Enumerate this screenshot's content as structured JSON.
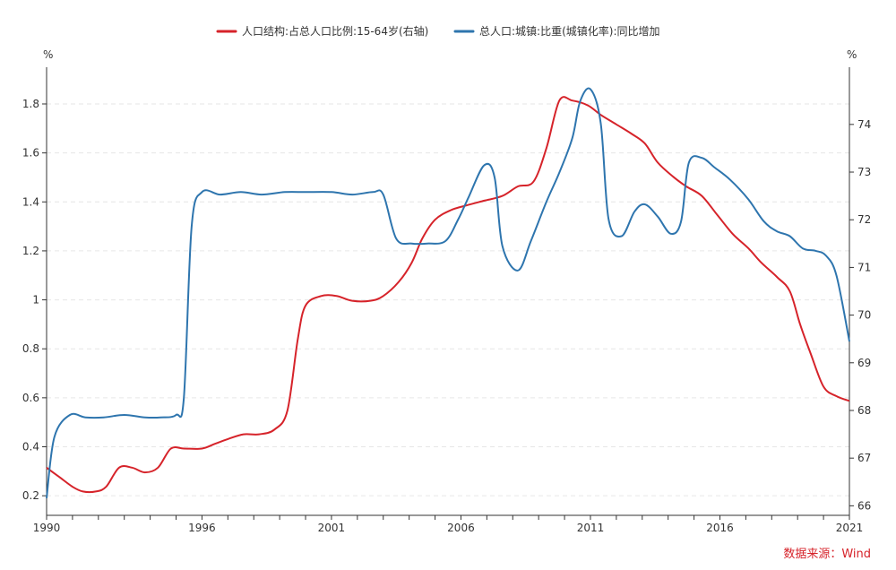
{
  "chart_data": {
    "type": "line",
    "legend": {
      "placement": "top-center"
    },
    "left_axis": {
      "unit": "%",
      "ylim": [
        0.12,
        1.95
      ],
      "ticks": [
        "0.2",
        "0.4",
        "0.6",
        "0.8",
        "1",
        "1.2",
        "1.4",
        "1.6",
        "1.8"
      ]
    },
    "right_axis": {
      "unit": "%",
      "ylim": [
        65.8,
        75.2
      ],
      "ticks": [
        "66",
        "67",
        "68",
        "69",
        "70",
        "71",
        "72",
        "73",
        "74"
      ]
    },
    "x_axis": {
      "xlim": [
        1990,
        2021
      ],
      "ticks": [
        "1990",
        "1996",
        "2001",
        "2006",
        "2011",
        "2016",
        "2021"
      ]
    },
    "grid": true,
    "series": [
      {
        "name": "人口结构:占总人口比例:15-64岁(右轴)",
        "color": "#d6232a",
        "axis": "right",
        "points": [
          [
            1990,
            66.8
          ],
          [
            1990.5,
            66.6
          ],
          [
            1991,
            66.4
          ],
          [
            1991.4,
            66.3
          ],
          [
            1991.9,
            66.3
          ],
          [
            1992.3,
            66.4
          ],
          [
            1992.8,
            66.8
          ],
          [
            1993.3,
            66.8
          ],
          [
            1993.8,
            66.7
          ],
          [
            1994.3,
            66.8
          ],
          [
            1994.8,
            67.2
          ],
          [
            1995.3,
            67.2
          ],
          [
            1996,
            67.2
          ],
          [
            1996.5,
            67.3
          ],
          [
            1997,
            67.4
          ],
          [
            1997.6,
            67.5
          ],
          [
            1998.2,
            67.5
          ],
          [
            1998.8,
            67.6
          ],
          [
            1999.3,
            68
          ],
          [
            1999.7,
            69.5
          ],
          [
            2000,
            70.2
          ],
          [
            2000.6,
            70.4
          ],
          [
            2001.2,
            70.4
          ],
          [
            2001.8,
            70.3
          ],
          [
            2002.5,
            70.3
          ],
          [
            2003,
            70.4
          ],
          [
            2003.6,
            70.7
          ],
          [
            2004.1,
            71.1
          ],
          [
            2004.5,
            71.6
          ],
          [
            2005,
            72
          ],
          [
            2005.6,
            72.2
          ],
          [
            2006.2,
            72.3
          ],
          [
            2006.9,
            72.4
          ],
          [
            2007.6,
            72.5
          ],
          [
            2008.2,
            72.7
          ],
          [
            2008.8,
            72.8
          ],
          [
            2009.3,
            73.5
          ],
          [
            2009.8,
            74.5
          ],
          [
            2010.3,
            74.5
          ],
          [
            2010.9,
            74.4
          ],
          [
            2011.4,
            74.2
          ],
          [
            2012,
            74
          ],
          [
            2012.6,
            73.8
          ],
          [
            2013.1,
            73.6
          ],
          [
            2013.6,
            73.2
          ],
          [
            2014.2,
            72.9
          ],
          [
            2014.7,
            72.7
          ],
          [
            2015.3,
            72.5
          ],
          [
            2015.9,
            72.1
          ],
          [
            2016.5,
            71.7
          ],
          [
            2017.1,
            71.4
          ],
          [
            2017.6,
            71.1
          ],
          [
            2018.2,
            70.8
          ],
          [
            2018.7,
            70.5
          ],
          [
            2019.1,
            69.8
          ],
          [
            2019.5,
            69.2
          ],
          [
            2020,
            68.5
          ],
          [
            2020.5,
            68.3
          ],
          [
            2021,
            68.2
          ]
        ]
      },
      {
        "name": "总人口:城镇:比重(城镇化率):同比增加",
        "color": "#2e75ae",
        "axis": "left",
        "points": [
          [
            1990,
            0.19
          ],
          [
            1990.3,
            0.44
          ],
          [
            1990.9,
            0.53
          ],
          [
            1991.5,
            0.52
          ],
          [
            1992.2,
            0.52
          ],
          [
            1993,
            0.53
          ],
          [
            1993.8,
            0.52
          ],
          [
            1994.4,
            0.52
          ],
          [
            1995,
            0.53
          ],
          [
            1995.3,
            0.6
          ],
          [
            1995.6,
            1.3
          ],
          [
            1996,
            1.44
          ],
          [
            1996.7,
            1.43
          ],
          [
            1997.5,
            1.44
          ],
          [
            1998.3,
            1.43
          ],
          [
            1999.2,
            1.44
          ],
          [
            2000,
            1.44
          ],
          [
            2001,
            1.44
          ],
          [
            2001.8,
            1.43
          ],
          [
            2002.6,
            1.44
          ],
          [
            2003,
            1.43
          ],
          [
            2003.5,
            1.25
          ],
          [
            2004.1,
            1.23
          ],
          [
            2004.7,
            1.23
          ],
          [
            2005.4,
            1.24
          ],
          [
            2005.9,
            1.33
          ],
          [
            2006.3,
            1.42
          ],
          [
            2006.9,
            1.55
          ],
          [
            2007.3,
            1.5
          ],
          [
            2007.6,
            1.22
          ],
          [
            2008.2,
            1.12
          ],
          [
            2008.7,
            1.24
          ],
          [
            2009.3,
            1.4
          ],
          [
            2009.8,
            1.52
          ],
          [
            2010.3,
            1.66
          ],
          [
            2010.6,
            1.81
          ],
          [
            2011,
            1.86
          ],
          [
            2011.4,
            1.72
          ],
          [
            2011.7,
            1.33
          ],
          [
            2012.2,
            1.26
          ],
          [
            2012.7,
            1.36
          ],
          [
            2013.1,
            1.39
          ],
          [
            2013.6,
            1.34
          ],
          [
            2014.1,
            1.27
          ],
          [
            2014.5,
            1.32
          ],
          [
            2014.8,
            1.56
          ],
          [
            2015.3,
            1.58
          ],
          [
            2015.8,
            1.54
          ],
          [
            2016.4,
            1.49
          ],
          [
            2017.1,
            1.41
          ],
          [
            2017.7,
            1.32
          ],
          [
            2018.2,
            1.28
          ],
          [
            2018.7,
            1.26
          ],
          [
            2019.2,
            1.21
          ],
          [
            2019.7,
            1.2
          ],
          [
            2020.1,
            1.18
          ],
          [
            2020.5,
            1.1
          ],
          [
            2021,
            0.83
          ]
        ]
      }
    ]
  },
  "source": "数据来源：Wind"
}
